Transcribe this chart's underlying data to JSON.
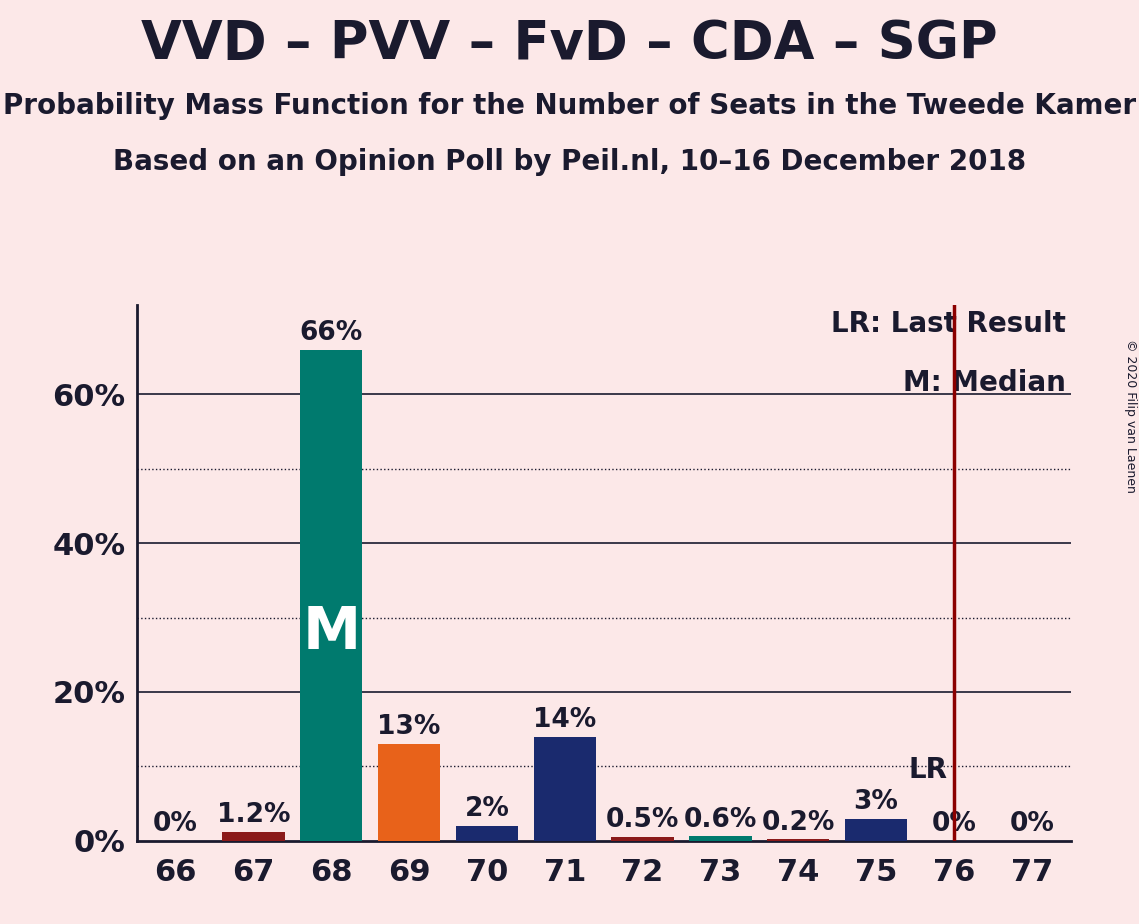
{
  "title": "VVD – PVV – FvD – CDA – SGP",
  "subtitle1": "Probability Mass Function for the Number of Seats in the Tweede Kamer",
  "subtitle2": "Based on an Opinion Poll by Peil.nl, 10–16 December 2018",
  "copyright": "© 2020 Filip van Laenen",
  "seats": [
    66,
    67,
    68,
    69,
    70,
    71,
    72,
    73,
    74,
    75,
    76,
    77
  ],
  "values": [
    0.0,
    1.2,
    66.0,
    13.0,
    2.0,
    14.0,
    0.5,
    0.6,
    0.2,
    3.0,
    0.0,
    0.0
  ],
  "bar_labels": [
    "0%",
    "1.2%",
    "66%",
    "13%",
    "2%",
    "14%",
    "0.5%",
    "0.6%",
    "0.2%",
    "3%",
    "0%",
    "0%"
  ],
  "bar_colors": [
    "#1a1a3a",
    "#8b1a1a",
    "#007a6e",
    "#e8621a",
    "#1a2a6e",
    "#1a2a6e",
    "#8b1a1a",
    "#007a6e",
    "#8b1a1a",
    "#1a2a6e",
    "#1a1a3a",
    "#1a1a3a"
  ],
  "background_color": "#fce8e8",
  "median_seat": 68,
  "lr_seat": 76,
  "lr_color": "#8b0000",
  "title_color": "#1a1a2e",
  "spine_color": "#1a1a2e",
  "solid_grid_color": "#1a1a2e",
  "dotted_grid_color": "#1a1a2e",
  "solid_grid_levels": [
    20,
    40,
    60
  ],
  "dotted_grid_levels": [
    10,
    30,
    50
  ],
  "ylim_max": 72,
  "ytick_positions": [
    0,
    20,
    40,
    60
  ],
  "ytick_labels": [
    "0%",
    "20%",
    "40%",
    "60%"
  ],
  "title_fontsize": 38,
  "subtitle_fontsize": 20,
  "tick_fontsize": 22,
  "bar_label_fontsize": 19,
  "median_label_fontsize": 42,
  "legend_fontsize": 20,
  "lr_label_fontsize": 20,
  "copyright_fontsize": 9
}
